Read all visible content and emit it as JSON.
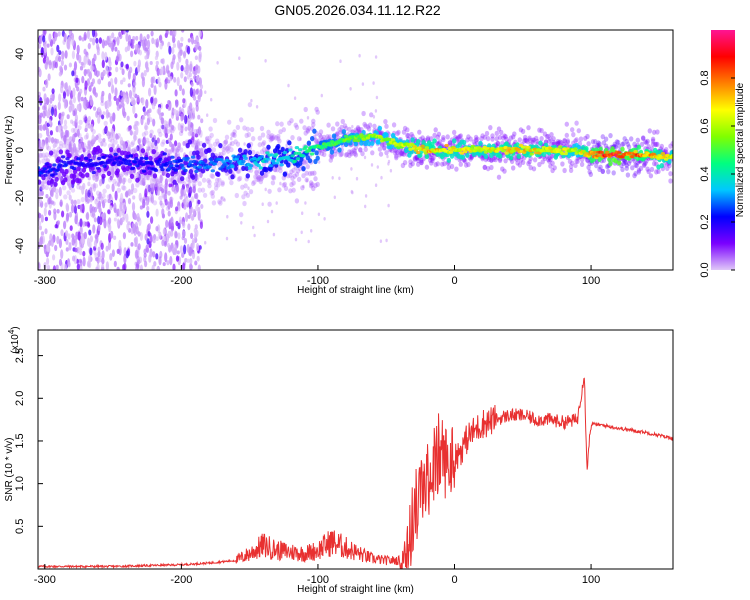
{
  "title": "GN05.2026.034.11.12.R22",
  "colors": {
    "snr_line": "#e83030",
    "axis": "#000000"
  },
  "chart_data": [
    {
      "type": "heatmap",
      "xlabel": "Height of straight line (km)",
      "ylabel": "Frequency (Hz)",
      "xlim": [
        -305,
        160
      ],
      "ylim": [
        -50,
        50
      ],
      "xticks": [
        -300,
        -200,
        -100,
        0,
        100
      ],
      "yticks": [
        -40,
        -20,
        0,
        20,
        40
      ],
      "colorbar": {
        "label": "Normalized spectral amplitude",
        "range": [
          0,
          1
        ],
        "ticks": [
          0.0,
          0.2,
          0.4,
          0.6,
          0.8
        ],
        "tick_labels": [
          "0.0",
          "0.2",
          "0.4",
          "0.6",
          "0.8"
        ],
        "colormap": [
          "#e0c8f8",
          "#7a00ff",
          "#0000ff",
          "#00c8ff",
          "#00ff80",
          "#80ff00",
          "#ffff00",
          "#ff8000",
          "#ff0000",
          "#ff1493"
        ]
      },
      "ridge": {
        "x": [
          -305,
          -280,
          -250,
          -220,
          -200,
          -180,
          -150,
          -120,
          -100,
          -80,
          -60,
          -40,
          -20,
          0,
          20,
          40,
          60,
          80,
          90,
          100,
          120,
          140,
          160
        ],
        "center_freq": [
          -9,
          -6,
          -5,
          -5,
          -6,
          -5,
          -5,
          -3,
          1,
          4,
          6,
          2,
          0,
          0,
          0,
          0,
          0,
          0,
          0,
          -2,
          -2,
          -2,
          -3
        ],
        "amplitude": [
          0.25,
          0.22,
          0.22,
          0.23,
          0.28,
          0.3,
          0.35,
          0.42,
          0.5,
          0.55,
          0.6,
          0.62,
          0.75,
          0.7,
          0.68,
          0.75,
          0.72,
          0.7,
          0.6,
          0.85,
          0.95,
          0.8,
          0.65
        ]
      },
      "scatter_region": {
        "x_range": [
          -305,
          -185
        ],
        "freq_range": [
          -50,
          50
        ]
      }
    },
    {
      "type": "line",
      "xlabel": "Height of straight line (km)",
      "ylabel": "SNR (10 * v/v)",
      "yscale_label": "(x10",
      "yscale_exponent": "4",
      "xlim": [
        -305,
        160
      ],
      "ylim": [
        0,
        2.8
      ],
      "xticks": [
        -300,
        -200,
        -100,
        0,
        100
      ],
      "yticks": [
        0.5,
        1.0,
        1.5,
        2.0,
        2.5
      ],
      "ytick_labels": [
        "0.5",
        "1.0",
        "1.5",
        "2.0",
        "2.5"
      ],
      "series": [
        {
          "x": [
            -305,
            -250,
            -200,
            -180,
            -160,
            -150,
            -140,
            -130,
            -120,
            -110,
            -100,
            -90,
            -80,
            -70,
            -60,
            -50,
            -40,
            -35,
            -30,
            -25,
            -20,
            -15,
            -10,
            -5,
            0,
            5,
            10,
            20,
            30,
            40,
            50,
            60,
            70,
            80,
            90,
            95,
            97,
            100,
            110,
            120,
            140,
            160
          ],
          "y": [
            0.03,
            0.03,
            0.05,
            0.07,
            0.1,
            0.18,
            0.28,
            0.22,
            0.2,
            0.18,
            0.22,
            0.32,
            0.25,
            0.18,
            0.12,
            0.1,
            0.1,
            0.25,
            0.6,
            0.9,
            1.0,
            1.2,
            1.35,
            1.2,
            1.3,
            1.4,
            1.55,
            1.7,
            1.75,
            1.8,
            1.8,
            1.75,
            1.75,
            1.72,
            1.75,
            2.3,
            1.2,
            1.7,
            1.68,
            1.65,
            1.6,
            1.53
          ]
        }
      ]
    }
  ]
}
